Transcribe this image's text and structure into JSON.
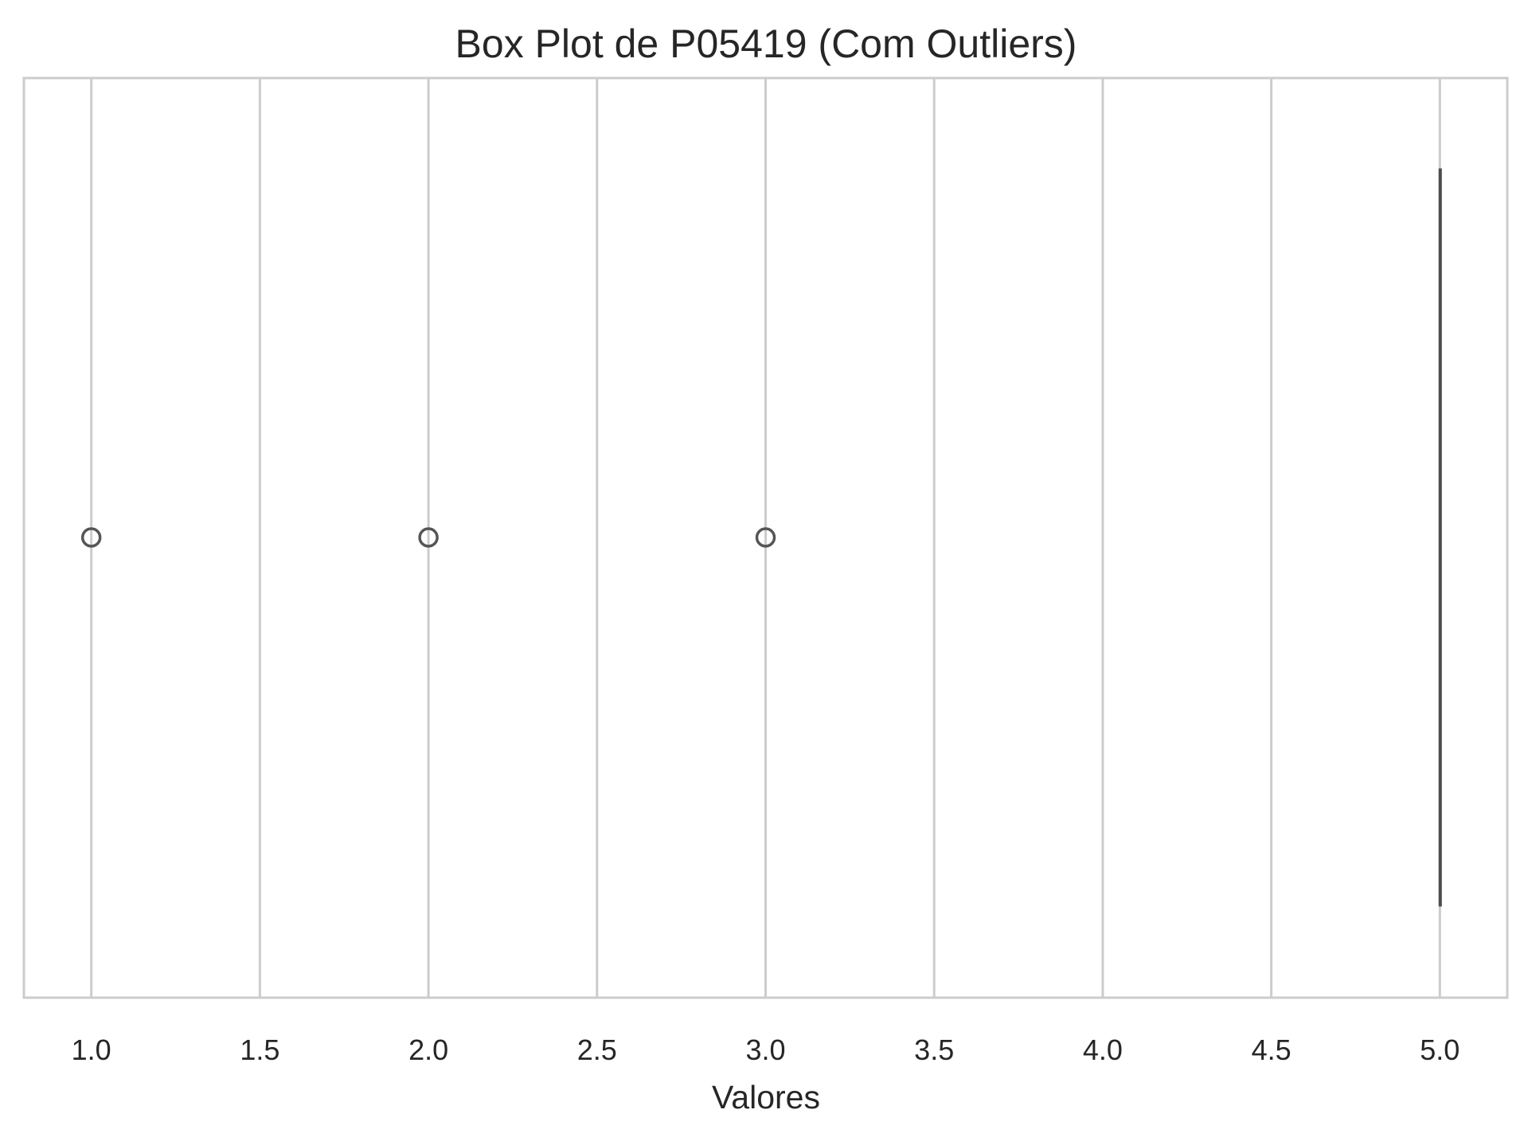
{
  "chart_data": {
    "type": "box",
    "title": "Box Plot de P05419 (Com Outliers)",
    "xlabel": "Valores",
    "ylabel": "",
    "xlim": [
      0.8,
      5.2
    ],
    "x_ticks": [
      1.0,
      1.5,
      2.0,
      2.5,
      3.0,
      3.5,
      4.0,
      4.5,
      5.0
    ],
    "x_tick_labels": [
      "1.0",
      "1.5",
      "2.0",
      "2.5",
      "3.0",
      "3.5",
      "4.0",
      "4.5",
      "5.0"
    ],
    "orientation": "horizontal",
    "grid": "vertical",
    "box": {
      "min": 5.0,
      "q1": 5.0,
      "median": 5.0,
      "q3": 5.0,
      "max": 5.0
    },
    "outliers": [
      1.0,
      2.0,
      3.0
    ],
    "colors": {
      "box_line": "#4d4d4d",
      "outlier_edge": "#555555",
      "grid": "#cccccc",
      "spine": "#cccccc",
      "text": "#262626"
    }
  }
}
